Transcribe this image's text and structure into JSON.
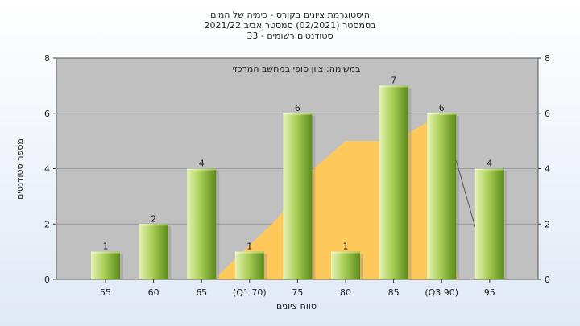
{
  "chart_data": {
    "type": "bar",
    "title_lines": [
      "היסטוגרמת ציונים בקורס - כימיה של המים",
      "בסמסטר  (02/2021)  סמסטר אביב 2021/22",
      "סטודנטים רשומים - 33"
    ],
    "annotation": "במשימה: ציון סופי במחשב המרכזי",
    "xlabel": "טווח ציונים",
    "ylabel": "מספר סטודנטים",
    "categories": [
      "55",
      "60",
      "65",
      "(Q1 70)",
      "75",
      "80",
      "85",
      "(Q3 90)",
      "95"
    ],
    "values": [
      1,
      2,
      4,
      1,
      6,
      1,
      7,
      6,
      4
    ],
    "ylim": [
      0,
      8
    ],
    "yticks": [
      "0",
      "2",
      "4",
      "6",
      "8"
    ],
    "grid": true,
    "colors": {
      "plot_bg": "#c0c0c0",
      "bar_light": "#d8ec9a",
      "bar_dark": "#6e9a22",
      "area": "#ffc85a"
    }
  }
}
